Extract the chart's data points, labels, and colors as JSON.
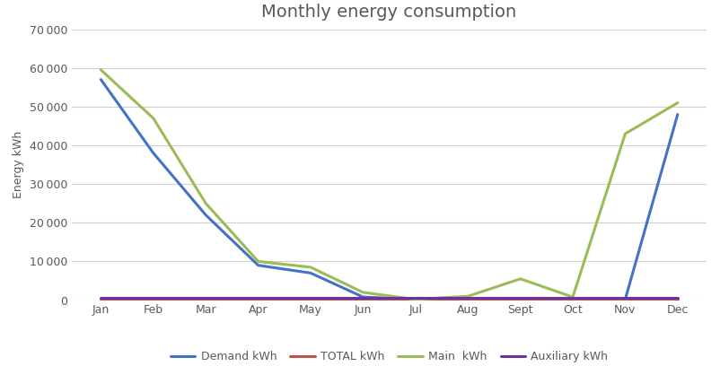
{
  "title": "Monthly energy consumption",
  "ylabel": "Energy kWh",
  "months": [
    "Jan",
    "Feb",
    "Mar",
    "Apr",
    "May",
    "Jun",
    "Jul",
    "Aug",
    "Sept",
    "Oct",
    "Nov",
    "Dec"
  ],
  "series": {
    "Demand kWh": [
      57000,
      38000,
      22000,
      9000,
      7000,
      800,
      200,
      200,
      200,
      200,
      200,
      48000
    ],
    "TOTAL kWh": [
      200,
      200,
      200,
      200,
      200,
      200,
      200,
      200,
      200,
      200,
      200,
      200
    ],
    "Main  kWh": [
      59500,
      47000,
      25000,
      10000,
      8500,
      2000,
      200,
      1000,
      5500,
      800,
      43000,
      51000
    ],
    "Auxiliary kWh": [
      700,
      700,
      700,
      700,
      700,
      700,
      700,
      700,
      700,
      700,
      700,
      700
    ]
  },
  "colors": {
    "Demand kWh": "#4472C4",
    "TOTAL kWh": "#C0504D",
    "Main  kWh": "#9BBB59",
    "Auxiliary kWh": "#7030A0"
  },
  "ylim": [
    0,
    70000
  ],
  "yticks": [
    0,
    10000,
    20000,
    30000,
    40000,
    50000,
    60000,
    70000
  ],
  "background_color": "#FFFFFF",
  "plot_bg_color": "#FFFFFF",
  "title_color": "#595959",
  "tick_color": "#595959",
  "label_color": "#595959",
  "grid_color": "#D0D0D0",
  "line_width": 2.2,
  "title_fontsize": 14,
  "axis_fontsize": 9,
  "legend_fontsize": 9
}
